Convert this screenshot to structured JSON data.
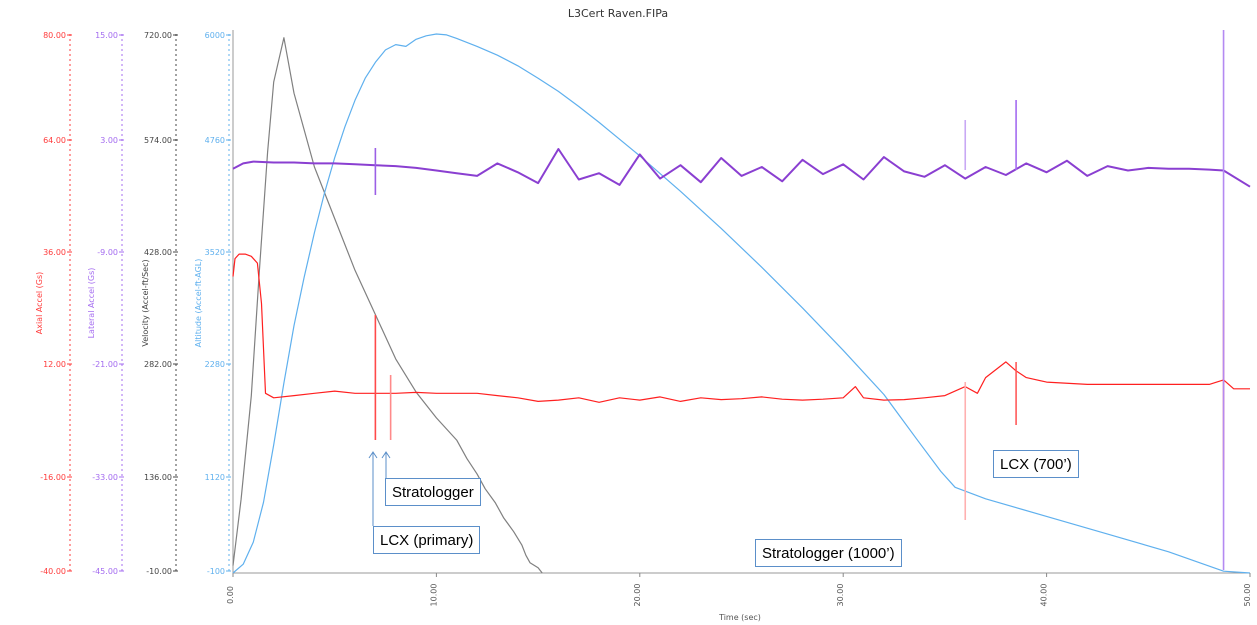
{
  "chart_data": {
    "type": "line",
    "title": "L3Cert Raven.FIPa",
    "xlabel": "Time (sec)",
    "xlim": [
      0,
      50
    ],
    "x_ticks": [
      "0.00",
      "10.00",
      "20.00",
      "30.00",
      "40.00",
      "50.00"
    ],
    "grid": false,
    "legend": "none",
    "axes": [
      {
        "id": "accel",
        "label": "Axial Accel (Gs)",
        "color": "#ff3b3b",
        "ticks": [
          "80.00",
          "64.00",
          "36.00",
          "12.00",
          "-16.00",
          "-40.00"
        ],
        "ylim": [
          -40,
          80
        ]
      },
      {
        "id": "lateral",
        "label": "Lateral Accel (Gs)",
        "color": "#a46cf0",
        "ticks": [
          "15.00",
          "3.00",
          "-9.00",
          "-21.00",
          "-33.00",
          "-45.00"
        ],
        "ylim": [
          -45,
          15
        ]
      },
      {
        "id": "velocity",
        "label": "Velocity (Accel-ft/Sec)",
        "color": "#444444",
        "ticks": [
          "720.00",
          "574.00",
          "428.00",
          "282.00",
          "136.00",
          "-10.00"
        ],
        "ylim": [
          -10,
          720
        ]
      },
      {
        "id": "altitude",
        "label": "Altitude (Accel-ft-AGL)",
        "color": "#5fb0ee",
        "ticks": [
          "6000",
          "4760",
          "3520",
          "2280",
          "1120",
          "-100"
        ],
        "ylim": [
          -100,
          6000
        ]
      }
    ],
    "series": [
      {
        "axis": "velocity",
        "color": "#808080",
        "x": [
          0,
          0.4,
          0.9,
          1.3,
          1.7,
          2.0,
          2.5,
          3,
          4,
          5,
          6,
          7,
          8,
          9,
          10,
          11,
          11.5,
          12,
          12.4,
          12.9,
          13.3,
          13.8,
          14.2,
          14.4,
          14.6,
          15.0,
          15.2
        ],
        "y": [
          0,
          90,
          230,
          400,
          560,
          655,
          715,
          640,
          540,
          470,
          400,
          340,
          280,
          235,
          200,
          170,
          145,
          124,
          104,
          85,
          65,
          46,
          28,
          14,
          4,
          -3,
          -10
        ]
      },
      {
        "axis": "altitude",
        "color": "#5fb0ee",
        "x": [
          0,
          0.5,
          1,
          1.5,
          2,
          2.5,
          3,
          3.5,
          4,
          4.5,
          5,
          5.5,
          6,
          6.5,
          7,
          7.5,
          8,
          8.5,
          9,
          9.5,
          10,
          10.5,
          11,
          12,
          13,
          14,
          15,
          16,
          17,
          18,
          20,
          22,
          24,
          26,
          28,
          30,
          32,
          33.6,
          34.8,
          35.5,
          37,
          40,
          43,
          46,
          48.7,
          50
        ],
        "y": [
          -100,
          0,
          250,
          700,
          1350,
          2050,
          2700,
          3250,
          3750,
          4200,
          4600,
          4950,
          5250,
          5500,
          5680,
          5820,
          5880,
          5860,
          5940,
          5980,
          6000,
          5990,
          5950,
          5860,
          5760,
          5640,
          5500,
          5350,
          5180,
          5000,
          4620,
          4220,
          3800,
          3360,
          2900,
          2420,
          1920,
          1420,
          1050,
          870,
          740,
          540,
          340,
          140,
          -80,
          -100
        ]
      },
      {
        "axis": "lateral",
        "color": "#8a3fd1",
        "x": [
          0,
          0.5,
          1,
          2,
          3,
          4,
          5,
          6,
          7,
          8,
          9,
          10,
          11,
          12,
          13,
          14,
          15,
          16,
          17,
          18,
          19,
          20,
          21,
          22,
          23,
          24,
          25,
          26,
          27,
          28,
          29,
          30,
          31,
          32,
          33,
          34,
          35,
          36,
          37,
          38,
          39,
          40,
          41,
          42,
          43,
          44,
          45,
          46,
          47,
          48,
          48.7,
          50
        ],
        "y": [
          0,
          0.6,
          0.8,
          0.7,
          0.7,
          0.6,
          0.6,
          0.5,
          0.4,
          0.3,
          0.1,
          -0.2,
          -0.5,
          -0.8,
          0.6,
          -0.4,
          -1.6,
          2.2,
          -1.2,
          -0.5,
          -1.8,
          1.6,
          -1.1,
          0.4,
          -1.5,
          1.2,
          -0.8,
          0.2,
          -1.4,
          1.0,
          -0.6,
          0.5,
          -1.2,
          1.3,
          -0.3,
          -0.9,
          0.4,
          -1.1,
          0.2,
          -0.7,
          0.6,
          -0.4,
          0.9,
          -0.8,
          0.3,
          -0.2,
          0.1,
          0.0,
          0.0,
          -0.1,
          -0.2,
          -2.0
        ]
      },
      {
        "axis": "accel",
        "color": "#ff2020",
        "x": [
          0,
          0.1,
          0.3,
          0.6,
          0.9,
          1.2,
          1.4,
          1.6,
          2,
          3,
          4,
          5,
          6,
          7,
          8,
          9,
          10,
          11,
          12,
          13,
          14,
          15,
          16,
          17,
          18,
          19,
          20,
          21,
          22,
          23,
          24,
          25,
          26,
          27,
          28,
          29,
          30,
          30.6,
          31,
          32,
          33,
          34,
          35,
          36,
          36.6,
          37,
          38,
          38.5,
          39,
          40,
          42,
          44,
          46,
          48,
          48.7,
          49.2,
          50
        ],
        "y": [
          26,
          30,
          31,
          31,
          30.5,
          29,
          20,
          0,
          -1,
          -0.5,
          0,
          0.5,
          0,
          0,
          0,
          0.2,
          0,
          0,
          0,
          -0.5,
          -1,
          -1.8,
          -1.5,
          -1.0,
          -2.0,
          -1.0,
          -1.5,
          -0.8,
          -1.8,
          -1.0,
          -1.4,
          -1.2,
          -0.8,
          -1.3,
          -1.5,
          -1.3,
          -1.0,
          1.5,
          -1.0,
          -1.5,
          -1.4,
          -1.0,
          -0.5,
          1.5,
          0,
          3.5,
          7,
          5,
          3.5,
          2.5,
          2,
          2,
          2,
          2,
          3,
          1,
          1
        ]
      }
    ],
    "spikes": [
      {
        "x": 7.0,
        "color": "#ff6a6a",
        "y0": 2170,
        "y1": 2840,
        "axis_px": true
      },
      {
        "x": 7.75,
        "color": "#ff8a8a",
        "y0": 2000,
        "y1": 2600,
        "axis_px": true
      }
    ],
    "annotations": [
      {
        "id": "stratologger",
        "text": "Stratologger"
      },
      {
        "id": "lcx-primary",
        "text": "LCX (primary)"
      },
      {
        "id": "stratologger-1000",
        "text": "Stratologger (1000’)"
      },
      {
        "id": "lcx-700",
        "text": "LCX (700’)"
      }
    ]
  }
}
